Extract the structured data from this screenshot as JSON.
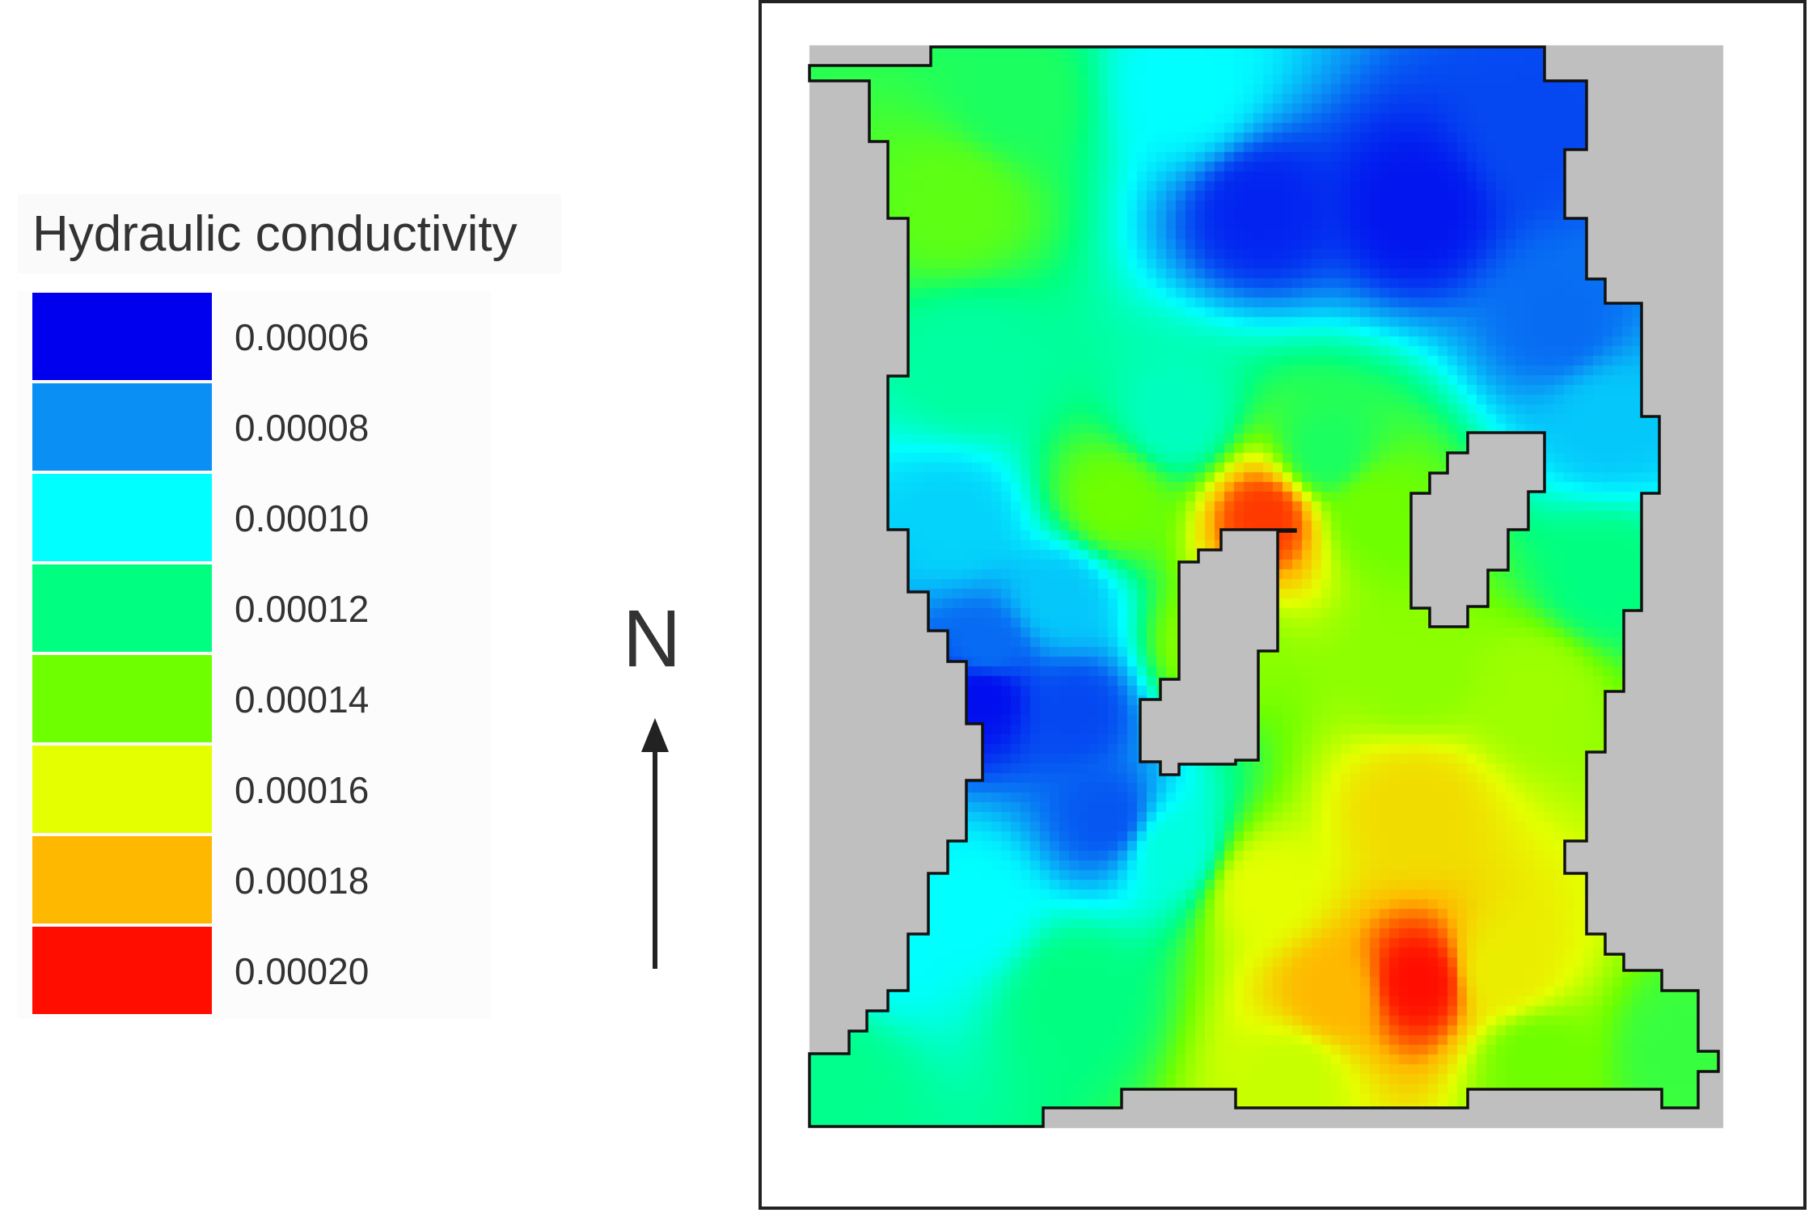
{
  "legend": {
    "title": "Hydraulic conductivity",
    "items": [
      {
        "label": "0.00006",
        "color": "#0000ee"
      },
      {
        "label": "0.00008",
        "color": "#0a90f5"
      },
      {
        "label": "0.00010",
        "color": "#00ffff"
      },
      {
        "label": "0.00012",
        "color": "#00ff80"
      },
      {
        "label": "0.00014",
        "color": "#6eff00"
      },
      {
        "label": "0.00016",
        "color": "#e4ff00"
      },
      {
        "label": "0.00018",
        "color": "#ffb800"
      },
      {
        "label": "0.00020",
        "color": "#ff0e00"
      }
    ]
  },
  "north_arrow": {
    "label": "N"
  },
  "map": {
    "background_color": "#bfbfbf",
    "outline_color": "#111111",
    "min_value": 6e-05,
    "max_value": 0.0002
  }
}
